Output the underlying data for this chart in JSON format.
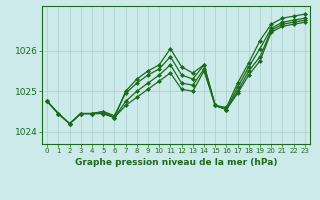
{
  "xlabel": "Graphe pression niveau de la mer (hPa)",
  "background_color": "#cceaea",
  "grid_color": "#aacccc",
  "line_color": "#1a6b1a",
  "text_color": "#1a6b1a",
  "x_hours": [
    0,
    1,
    2,
    3,
    4,
    5,
    6,
    7,
    8,
    9,
    10,
    11,
    12,
    13,
    14,
    15,
    16,
    17,
    18,
    19,
    20,
    21,
    22,
    23
  ],
  "ylim_min": 1023.7,
  "ylim_max": 1027.1,
  "yticks": [
    1024,
    1025,
    1026
  ],
  "series": [
    [
      1024.75,
      1024.45,
      1024.2,
      1024.45,
      1024.45,
      1024.5,
      1024.35,
      1025.0,
      1025.3,
      1025.5,
      1025.65,
      1026.05,
      1025.6,
      1025.45,
      1025.65,
      1024.65,
      1024.6,
      1025.2,
      1025.7,
      1026.25,
      1026.65,
      1026.8,
      1026.85,
      1026.9
    ],
    [
      1024.75,
      1024.45,
      1024.2,
      1024.45,
      1024.45,
      1024.5,
      1024.4,
      1024.95,
      1025.2,
      1025.4,
      1025.55,
      1025.85,
      1025.4,
      1025.3,
      1025.65,
      1024.65,
      1024.55,
      1025.1,
      1025.6,
      1026.05,
      1026.55,
      1026.7,
      1026.75,
      1026.8
    ],
    [
      1024.75,
      1024.45,
      1024.2,
      1024.45,
      1024.45,
      1024.45,
      1024.35,
      1024.75,
      1025.0,
      1025.2,
      1025.4,
      1025.65,
      1025.2,
      1025.15,
      1025.55,
      1024.65,
      1024.55,
      1025.0,
      1025.5,
      1025.85,
      1026.5,
      1026.65,
      1026.7,
      1026.75
    ],
    [
      1024.75,
      1024.45,
      1024.2,
      1024.45,
      1024.45,
      1024.45,
      1024.35,
      1024.65,
      1024.85,
      1025.05,
      1025.25,
      1025.45,
      1025.05,
      1025.0,
      1025.5,
      1024.65,
      1024.55,
      1024.95,
      1025.4,
      1025.75,
      1026.45,
      1026.6,
      1026.65,
      1026.7
    ]
  ],
  "marker": "D",
  "markersize": 2.0,
  "linewidth": 0.9
}
